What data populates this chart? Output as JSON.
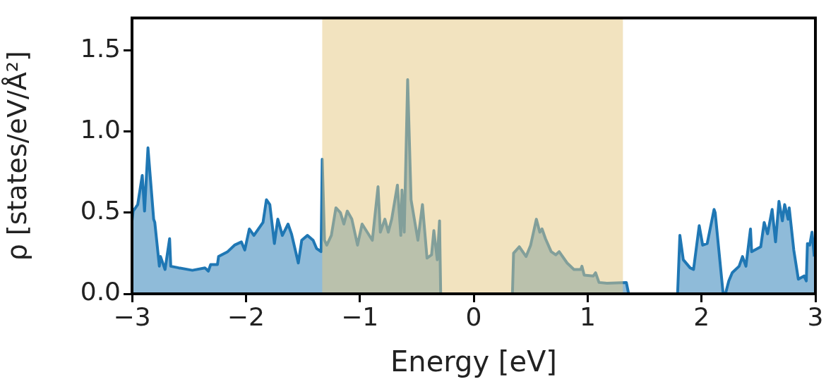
{
  "chart_data": {
    "type": "area",
    "xlabel": "Energy [eV]",
    "ylabel": "ρ [states/eV/Å²]",
    "xlim": [
      -3,
      3
    ],
    "xticks": [
      -3,
      -2,
      -1,
      0,
      1,
      2,
      3
    ],
    "ylim": [
      0,
      1.7
    ],
    "yticks": [
      {
        "value": 0,
        "label": "0.0"
      },
      0.5,
      {
        "value": 1,
        "label": "1.0"
      },
      1.5
    ],
    "grid": false,
    "legend": false,
    "bands": [
      {
        "axis": "x",
        "from": -1.33,
        "to": 1.31,
        "color": "#e6c880"
      }
    ],
    "series": [
      {
        "color": "#1f77b4",
        "x": [
          -3,
          -2.99,
          -2.95,
          -2.91,
          -2.89,
          -2.86,
          -2.81,
          -2.8,
          -2.76,
          -2.75,
          -2.71,
          -2.67,
          -2.66,
          -2.59,
          -2.47,
          -2.36,
          -2.33,
          -2.31,
          -2.25,
          -2.24,
          -2.16,
          -2.1,
          -2.04,
          -2.01,
          -1.97,
          -1.93,
          -1.85,
          -1.82,
          -1.79,
          -1.75,
          -1.72,
          -1.68,
          -1.63,
          -1.6,
          -1.54,
          -1.51,
          -1.46,
          -1.41,
          -1.38,
          -1.34,
          -1.33,
          -1.31,
          -1.29,
          -1.25,
          -1.21,
          -1.17,
          -1.14,
          -1.11,
          -1.07,
          -1.02,
          -0.98,
          -0.89,
          -0.84,
          -0.82,
          -0.78,
          -0.75,
          -0.72,
          -0.67,
          -0.64,
          -0.63,
          -0.61,
          -0.58,
          -0.55,
          -0.49,
          -0.45,
          -0.41,
          -0.37,
          -0.35,
          -0.32,
          -0.3,
          -0.29,
          0.34,
          0.35,
          0.4,
          0.46,
          0.5,
          0.55,
          0.58,
          0.6,
          0.63,
          0.68,
          0.72,
          0.75,
          0.82,
          0.88,
          0.94,
          0.95,
          0.97,
          1.05,
          1.07,
          1.1,
          1.17,
          1.34,
          1.36,
          1.79,
          1.81,
          1.84,
          1.9,
          1.93,
          1.98,
          2.01,
          2.05,
          2.11,
          2.12,
          2.19,
          2.21,
          2.24,
          2.27,
          2.33,
          2.36,
          2.39,
          2.43,
          2.44,
          2.52,
          2.55,
          2.58,
          2.62,
          2.65,
          2.68,
          2.71,
          2.73,
          2.76,
          2.77,
          2.81,
          2.85,
          2.9,
          2.92,
          2.93,
          2.95,
          2.97,
          2.99
        ],
        "values": [
          0.45,
          0.51,
          0.55,
          0.73,
          0.51,
          0.9,
          0.46,
          0.44,
          0.17,
          0.23,
          0.15,
          0.34,
          0.17,
          0.16,
          0.145,
          0.16,
          0.14,
          0.18,
          0.18,
          0.23,
          0.26,
          0.3,
          0.32,
          0.27,
          0.4,
          0.36,
          0.44,
          0.58,
          0.55,
          0.31,
          0.46,
          0.36,
          0.43,
          0.37,
          0.19,
          0.33,
          0.36,
          0.33,
          0.28,
          0.26,
          0.83,
          0.33,
          0.3,
          0.36,
          0.53,
          0.5,
          0.43,
          0.51,
          0.46,
          0.3,
          0.43,
          0.33,
          0.66,
          0.38,
          0.46,
          0.38,
          0.46,
          0.67,
          0.36,
          0.64,
          0.38,
          1.32,
          0.58,
          0.33,
          0.55,
          0.22,
          0.24,
          0.39,
          0.21,
          0.45,
          0,
          0,
          0.25,
          0.29,
          0.23,
          0.3,
          0.46,
          0.38,
          0.4,
          0.34,
          0.26,
          0.24,
          0.26,
          0.19,
          0.15,
          0.15,
          0.17,
          0.115,
          0.11,
          0.13,
          0.07,
          0.065,
          0.07,
          0,
          0,
          0.36,
          0.21,
          0.16,
          0.15,
          0.42,
          0.3,
          0.31,
          0.52,
          0.5,
          0,
          0,
          0.08,
          0.13,
          0.17,
          0.23,
          0.17,
          0.4,
          0.26,
          0.29,
          0.44,
          0.37,
          0.52,
          0.32,
          0.57,
          0.45,
          0.55,
          0.46,
          0.53,
          0.27,
          0.09,
          0.11,
          0.08,
          0.31,
          0.3,
          0.38,
          0.23
        ]
      }
    ]
  }
}
